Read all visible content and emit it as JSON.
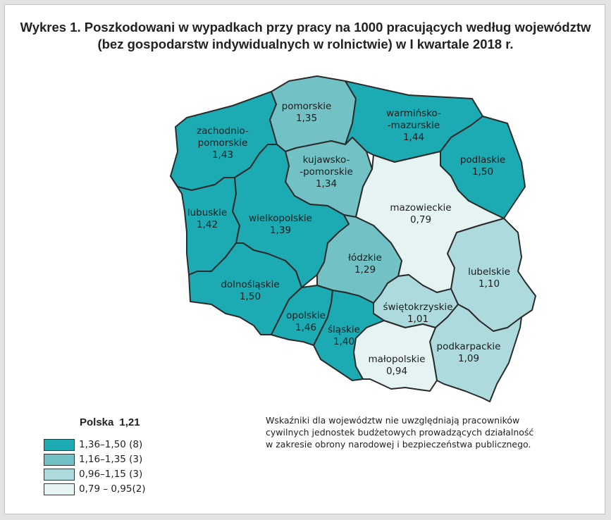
{
  "title": {
    "line1": "Wykres 1. Poszkodowani w wypadkach przy pracy na 1000 pracujących według województw",
    "line2": "(bez gospodarstw indywidualnych w rolnictwie) w  I kwartale 2018 r."
  },
  "colors": {
    "class1": "#1caab3",
    "class2": "#72c2c5",
    "class3": "#acdadd",
    "class4": "#e6f3f3",
    "border": "#2b2b2b"
  },
  "map": {
    "regions": [
      {
        "id": "pomorskie",
        "name": "pomorskie",
        "value": "1,35",
        "class": "class2"
      },
      {
        "id": "warminsko-mazurskie",
        "name_l1": "warmińsko-",
        "name_l2": "-mazurskie",
        "value": "1,44",
        "class": "class1"
      },
      {
        "id": "zachodniopomorskie",
        "name_l1": "zachodnio-",
        "name_l2": "pomorskie",
        "value": "1,43",
        "class": "class1"
      },
      {
        "id": "kujawsko-pomorskie",
        "name_l1": "kujawsko-",
        "name_l2": "-pomorskie",
        "value": "1,34",
        "class": "class2"
      },
      {
        "id": "podlaskie",
        "name": "podlaskie",
        "value": "1,50",
        "class": "class1"
      },
      {
        "id": "mazowieckie",
        "name": "mazowieckie",
        "value": "0,79",
        "class": "class4"
      },
      {
        "id": "lubuskie",
        "name": "lubuskie",
        "value": "1,42",
        "class": "class1"
      },
      {
        "id": "wielkopolskie",
        "name": "wielkopolskie",
        "value": "1,39",
        "class": "class1"
      },
      {
        "id": "lodzkie",
        "name": "łódzkie",
        "value": "1,29",
        "class": "class2"
      },
      {
        "id": "lubelskie",
        "name": "lubelskie",
        "value": "1,10",
        "class": "class3"
      },
      {
        "id": "dolnoslaskie",
        "name": "dolnośląskie",
        "value": "1,50",
        "class": "class1"
      },
      {
        "id": "swietokrzyskie",
        "name": "świętokrzyskie",
        "value": "1,01",
        "class": "class3"
      },
      {
        "id": "opolskie",
        "name": "opolskie",
        "value": "1,46",
        "class": "class1"
      },
      {
        "id": "slaskie",
        "name": "śląskie",
        "value": "1,40",
        "class": "class1"
      },
      {
        "id": "podkarpackie",
        "name": "podkarpackie",
        "value": "1,09",
        "class": "class3"
      },
      {
        "id": "malopolskie",
        "name": "małopolskie",
        "value": "0,94",
        "class": "class4"
      }
    ]
  },
  "legend": {
    "country_label": "Polska",
    "country_value": "1,21",
    "items": [
      {
        "label": "1,36–1,50 (8)",
        "class": "class1"
      },
      {
        "label": "1,16–1,35 (3)",
        "class": "class2"
      },
      {
        "label": "0,96–1,15 (3)",
        "class": "class3"
      },
      {
        "label": "0,79 – 0,95(2)",
        "class": "class4"
      }
    ]
  },
  "note": {
    "line1": "Wskaźniki dla województw nie uwzględniają pracowników",
    "line2": "cywilnych jednostek budżetowych prowadzących działalność",
    "line3": "w zakresie obrony narodowej i bezpieczeństwa publicznego."
  }
}
